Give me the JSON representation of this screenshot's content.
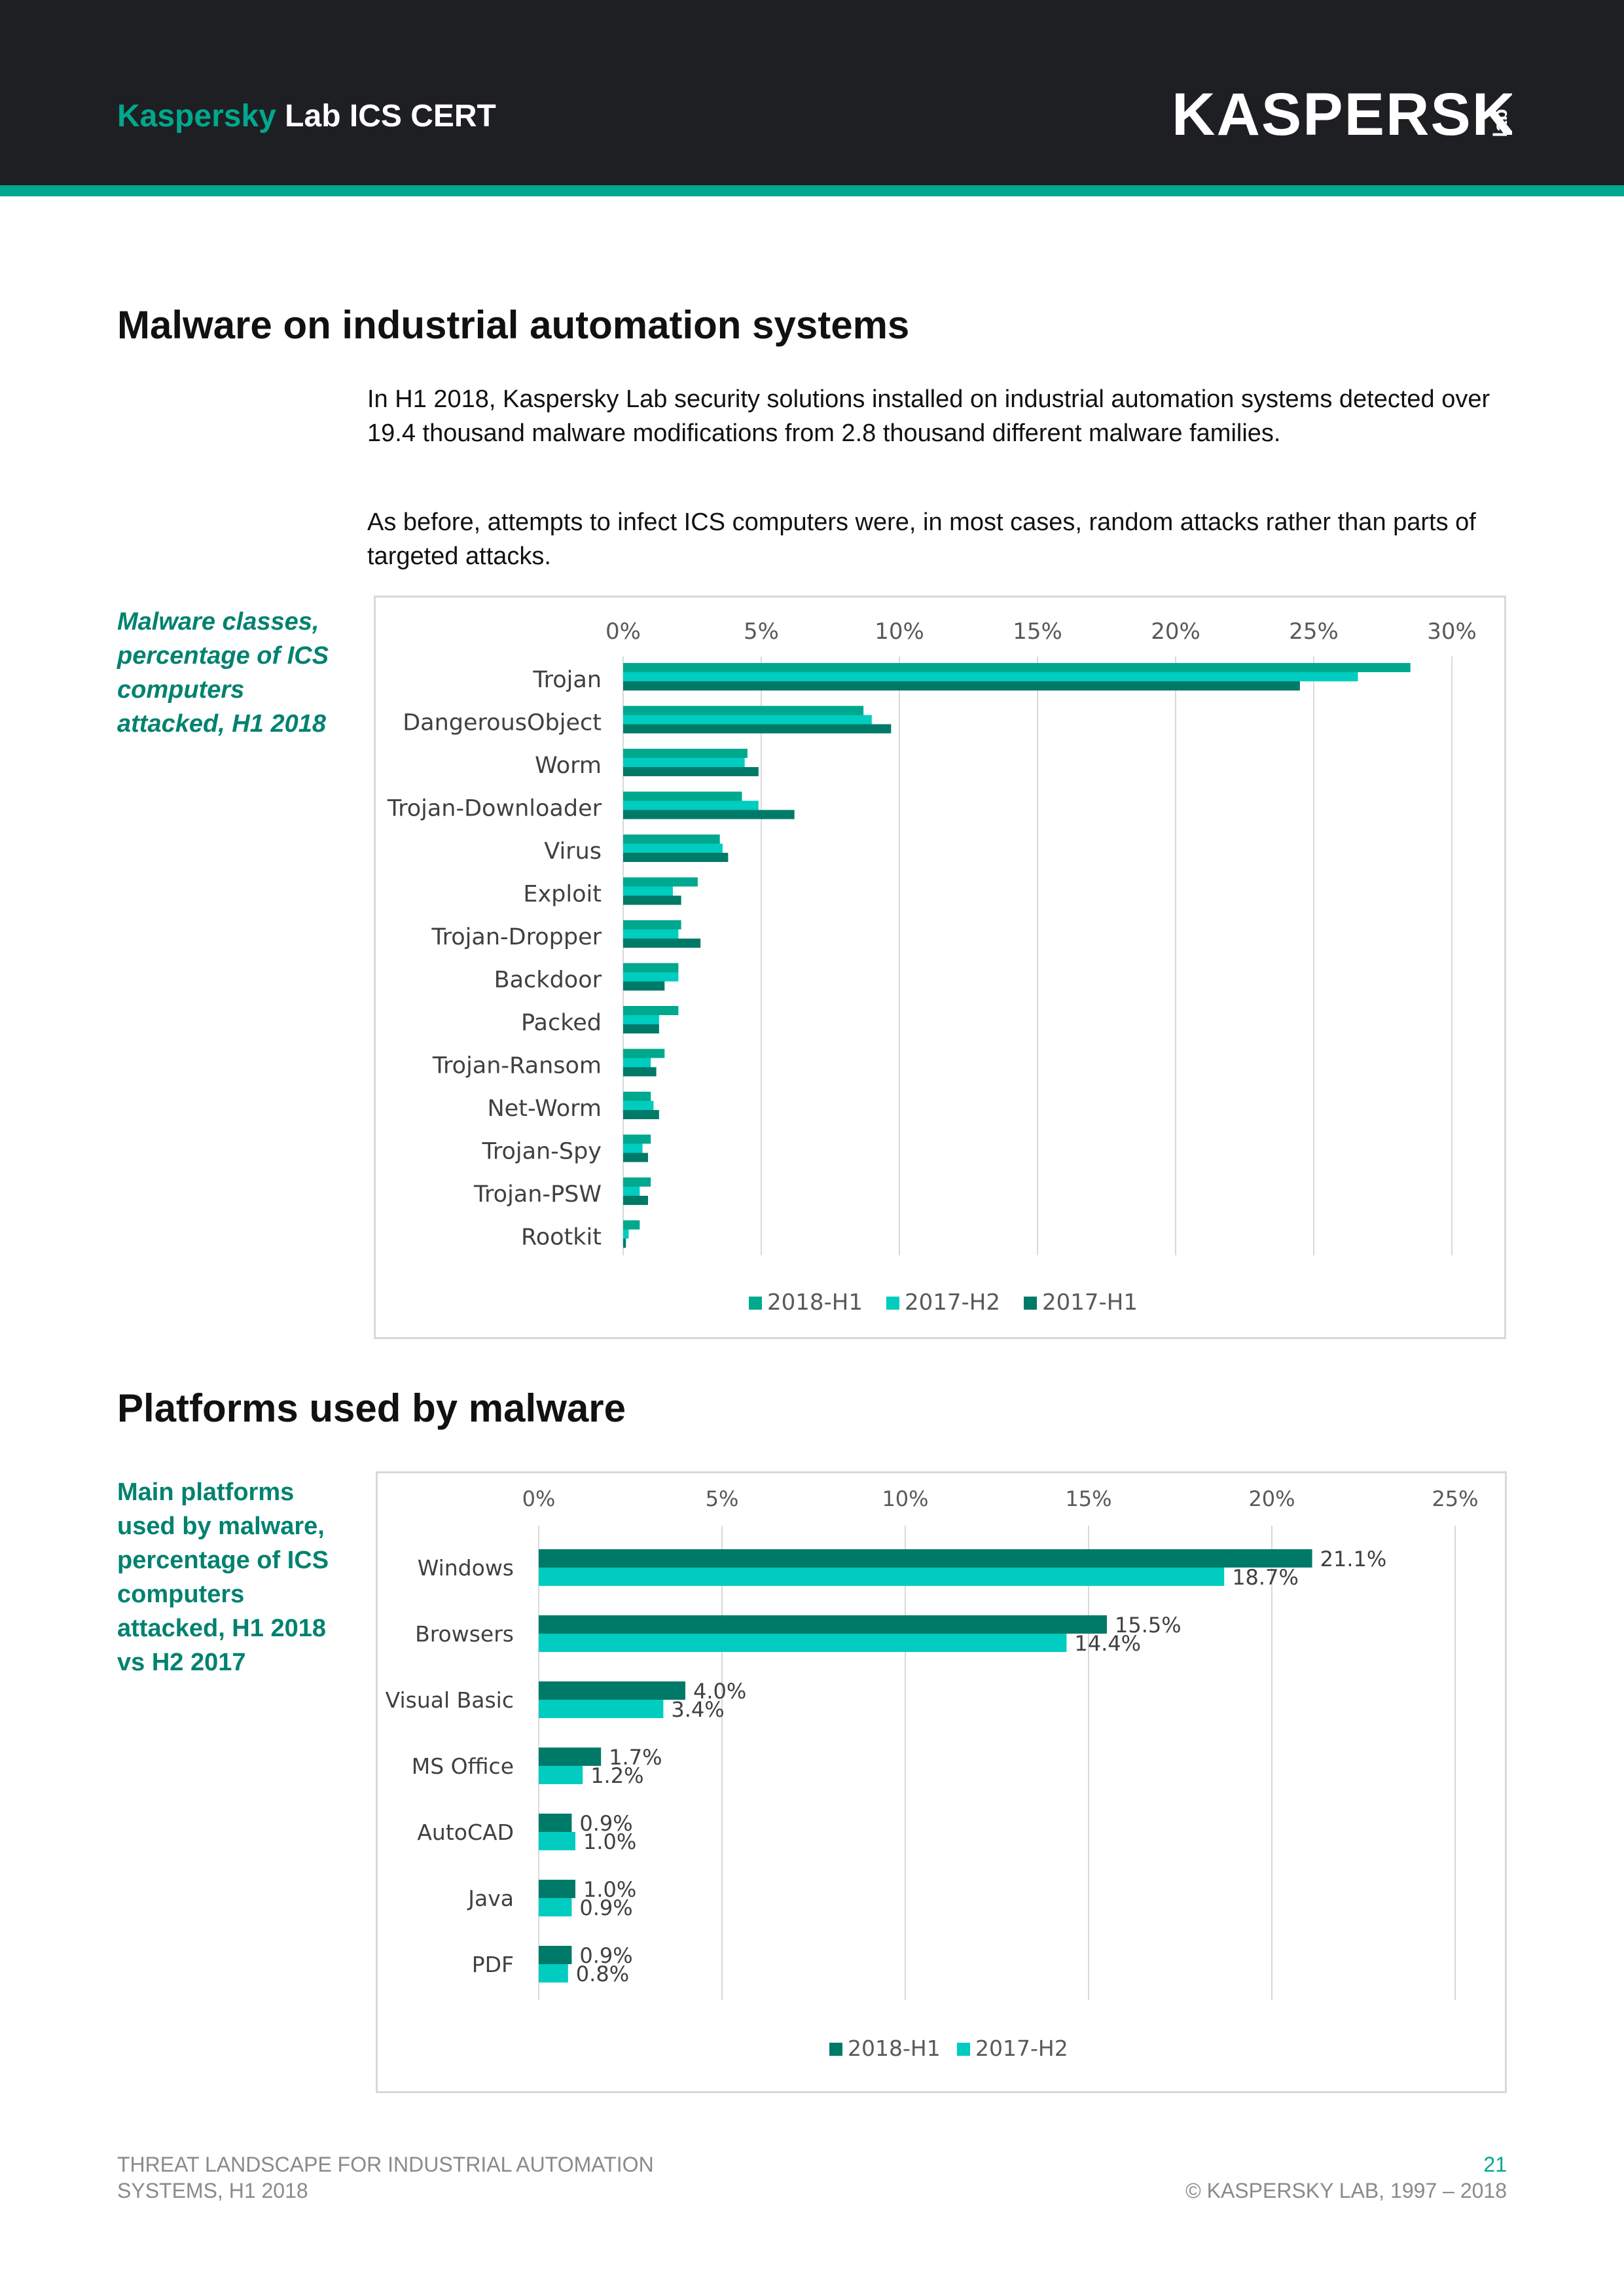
{
  "header": {
    "brand_accent": "Kaspersky",
    "brand_rest": " Lab ICS CERT",
    "logo_text": "KASPERSKY",
    "logo_sub": "lab",
    "bg_color": "#1e1f22",
    "accent_color": "#00a88e"
  },
  "section1": {
    "title": "Malware on industrial automation systems",
    "para1": "In H1 2018, Kaspersky Lab security solutions installed on industrial automation systems detected over 19.4 thousand malware modifications from 2.8 thousand different malware families.",
    "para2": "As before, attempts to infect ICS computers were, in most cases, random attacks rather than parts of targeted attacks.",
    "caption": "Malware classes, percentage of ICS computers attacked, H1 2018"
  },
  "section2": {
    "title": "Platforms used by malware",
    "caption": "Main platforms used by malware, percentage of ICS computers attacked, H1 2018 vs H2 2017"
  },
  "footer": {
    "left_line1": "THREAT LANDSCAPE FOR INDUSTRIAL AUTOMATION",
    "left_line2": "SYSTEMS, H1 2018",
    "page_number": "21",
    "copyright": "© KASPERSKY LAB, 1997 – 2018"
  },
  "chart_data": [
    {
      "type": "bar",
      "orientation": "horizontal",
      "categories": [
        "Trojan",
        "DangerousObject",
        "Worm",
        "Trojan-Downloader",
        "Virus",
        "Exploit",
        "Trojan-Dropper",
        "Backdoor",
        "Packed",
        "Trojan-Ransom",
        "Net-Worm",
        "Trojan-Spy",
        "Trojan-PSW",
        "Rootkit"
      ],
      "series": [
        {
          "name": "2018-H1",
          "color": "#00a88e",
          "values": [
            28.5,
            8.7,
            4.5,
            4.3,
            3.5,
            2.7,
            2.1,
            2.0,
            2.0,
            1.5,
            1.0,
            1.0,
            1.0,
            0.6
          ]
        },
        {
          "name": "2017-H2",
          "color": "#00ccc0",
          "values": [
            26.6,
            9.0,
            4.4,
            4.9,
            3.6,
            1.8,
            2.0,
            2.0,
            1.3,
            1.0,
            1.1,
            0.7,
            0.6,
            0.2
          ]
        },
        {
          "name": "2017-H1",
          "color": "#007a68",
          "values": [
            24.5,
            9.7,
            4.9,
            6.2,
            3.8,
            2.1,
            2.8,
            1.5,
            1.3,
            1.2,
            1.3,
            0.9,
            0.9,
            0.1
          ]
        }
      ],
      "xlim": [
        0,
        30
      ],
      "ticks": [
        "0%",
        "5%",
        "10%",
        "15%",
        "20%",
        "25%",
        "30%"
      ],
      "tick_values": [
        0,
        5,
        10,
        15,
        20,
        25,
        30
      ],
      "grid": true,
      "axis_position": "top",
      "legend_position": "bottom"
    },
    {
      "type": "bar",
      "orientation": "horizontal",
      "categories": [
        "Windows",
        "Browsers",
        "Visual Basic",
        "MS Office",
        "AutoCAD",
        "Java",
        "PDF"
      ],
      "series": [
        {
          "name": "2018-H1",
          "color": "#007a68",
          "values": [
            21.1,
            15.5,
            4.0,
            1.7,
            0.9,
            1.0,
            0.9
          ],
          "labels": [
            "21.1%",
            "15.5%",
            "4.0%",
            "1.7%",
            "0.9%",
            "1.0%",
            "0.9%"
          ]
        },
        {
          "name": "2017-H2",
          "color": "#00ccc0",
          "values": [
            18.7,
            14.4,
            3.4,
            1.2,
            1.0,
            0.9,
            0.8
          ],
          "labels": [
            "18.7%",
            "14.4%",
            "3.4%",
            "1.2%",
            "1.0%",
            "0.9%",
            "0.8%"
          ]
        }
      ],
      "xlim": [
        0,
        25
      ],
      "ticks": [
        "0%",
        "5%",
        "10%",
        "15%",
        "20%",
        "25%"
      ],
      "tick_values": [
        0,
        5,
        10,
        15,
        20,
        25
      ],
      "grid": true,
      "axis_position": "top",
      "legend_position": "bottom"
    }
  ]
}
